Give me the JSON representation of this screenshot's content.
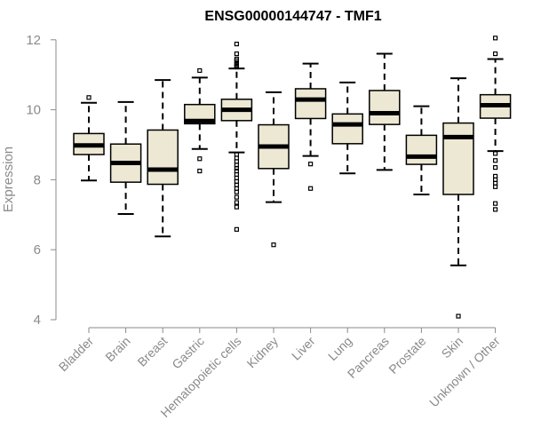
{
  "chart_data": {
    "type": "box",
    "title": "ENSG00000144747 - TMF1",
    "ylabel": "Expression",
    "xlabel": "",
    "ylim": [
      4,
      12
    ],
    "yticks": [
      4,
      6,
      8,
      10,
      12
    ],
    "ytick_labels": [
      "4",
      "6",
      "8",
      "10",
      "12"
    ],
    "grid": false,
    "legend": "none",
    "colors": {
      "box_fill": "#ede8d3",
      "stroke": "#000000",
      "axis": "#8a8a8a",
      "text": "#8a8a8a"
    },
    "categories": [
      "Bladder",
      "Brain",
      "Breast",
      "Gastric",
      "Hematopoietic cells",
      "Kidney",
      "Liver",
      "Lung",
      "Pancreas",
      "Prostate",
      "Skin",
      "Unknown / Other"
    ],
    "boxes": [
      {
        "q1": 8.72,
        "median": 8.98,
        "q3": 9.32,
        "lower": 7.98,
        "upper": 10.2,
        "outliers": [
          10.35
        ]
      },
      {
        "q1": 7.93,
        "median": 8.48,
        "q3": 9.02,
        "lower": 7.02,
        "upper": 10.22,
        "outliers": []
      },
      {
        "q1": 7.87,
        "median": 8.29,
        "q3": 9.42,
        "lower": 6.38,
        "upper": 10.85,
        "outliers": []
      },
      {
        "q1": 9.6,
        "median": 9.68,
        "q3": 10.15,
        "lower": 8.88,
        "upper": 10.92,
        "outliers": [
          11.12,
          8.6,
          8.25
        ]
      },
      {
        "q1": 9.69,
        "median": 10.0,
        "q3": 10.3,
        "lower": 8.78,
        "upper": 11.18,
        "outliers": [
          11.88,
          11.6,
          11.45,
          11.4,
          11.32,
          11.28,
          11.25,
          11.22,
          8.72,
          8.62,
          8.52,
          8.42,
          8.33,
          8.25,
          8.15,
          8.05,
          7.95,
          7.85,
          7.75,
          7.65,
          7.5,
          7.35,
          7.22,
          6.58
        ]
      },
      {
        "q1": 8.32,
        "median": 8.95,
        "q3": 9.57,
        "lower": 7.36,
        "upper": 10.5,
        "outliers": [
          6.14
        ]
      },
      {
        "q1": 9.75,
        "median": 10.29,
        "q3": 10.6,
        "lower": 8.68,
        "upper": 11.32,
        "outliers": [
          8.45,
          7.75
        ]
      },
      {
        "q1": 9.03,
        "median": 9.58,
        "q3": 9.88,
        "lower": 8.18,
        "upper": 10.78,
        "outliers": []
      },
      {
        "q1": 9.58,
        "median": 9.9,
        "q3": 10.55,
        "lower": 8.28,
        "upper": 11.6,
        "outliers": []
      },
      {
        "q1": 8.44,
        "median": 8.66,
        "q3": 9.27,
        "lower": 7.58,
        "upper": 10.1,
        "outliers": []
      },
      {
        "q1": 7.58,
        "median": 9.22,
        "q3": 9.62,
        "lower": 5.55,
        "upper": 10.9,
        "outliers": [
          4.1
        ]
      },
      {
        "q1": 9.76,
        "median": 10.13,
        "q3": 10.43,
        "lower": 8.82,
        "upper": 11.45,
        "outliers": [
          12.05,
          11.6,
          8.75,
          8.55,
          8.35,
          8.1,
          8.0,
          7.9,
          7.8,
          7.32,
          7.15
        ]
      }
    ]
  }
}
